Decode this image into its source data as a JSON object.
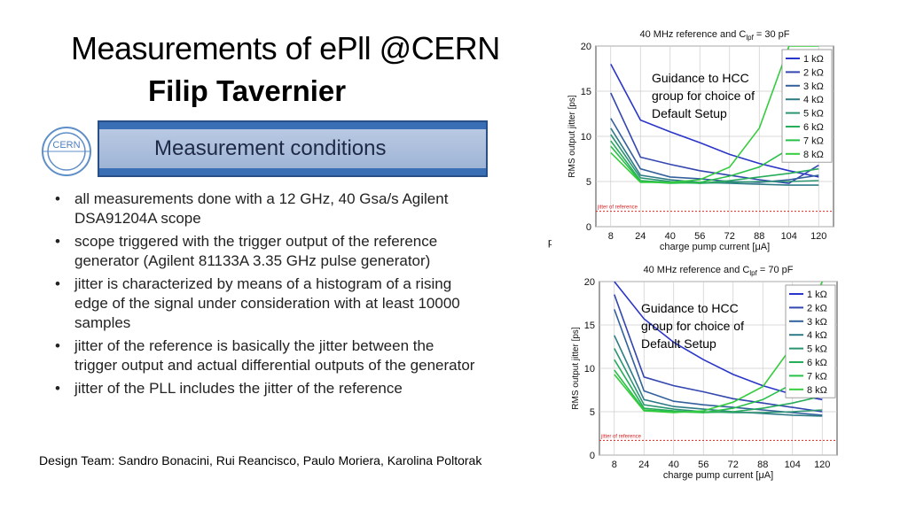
{
  "slide": {
    "title": "Measurements of ePll @CERN",
    "author": "Filip Tavernier",
    "logo_text": "CERN",
    "conditions_title": "Measurement conditions",
    "bullets": [
      "all measurements done with a 12 GHz, 40 Gsa/s Agilent DSA91204A scope",
      "scope triggered with the trigger output of the reference generator (Agilent 81133A 3.35 GHz pulse generator)",
      "jitter is characterized by means of a histogram of a rising edge of the signal under consideration with at least 10000 samples",
      "jitter of the reference is basically the jitter between the trigger output and actual differential outputs of the generator",
      "jitter of the PLL includes the jitter of the reference"
    ],
    "bullet_glyph": "•",
    "footer": "Design Team:  Sandro Bonacini, Rui Reancisco, Paulo Moriera, Karolina Poltorak",
    "side_fragment": "pF",
    "colors": {
      "banner": "#3a6fb5",
      "reference_line": "#d62728"
    }
  },
  "chart_data": [
    {
      "type": "line",
      "title": "40 MHz reference and C_lpf = 30 pF",
      "title_main": "40 MHz reference and C",
      "title_sub": "lpf",
      "title_tail": " = 30 pF",
      "xlabel": "charge pump current [μA]",
      "ylabel": "RMS output jitter [ps]",
      "categories": [
        8,
        24,
        40,
        56,
        72,
        88,
        104,
        120
      ],
      "yticks": [
        0,
        5,
        10,
        15,
        20
      ],
      "ylim": [
        0,
        20
      ],
      "grid": true,
      "legend_position": "top-right",
      "series": [
        {
          "name": "1 kΩ",
          "color": "#2b35c9",
          "values": [
            18,
            11.8,
            10.5,
            9.3,
            8,
            7,
            6.2,
            5.5
          ]
        },
        {
          "name": "2 kΩ",
          "color": "#3346b0",
          "values": [
            14.8,
            7.7,
            6.9,
            6.2,
            5.7,
            5.2,
            4.8,
            6.8
          ]
        },
        {
          "name": "3 kΩ",
          "color": "#33609c",
          "values": [
            12,
            6.4,
            5.5,
            5.3,
            5,
            4.9,
            5.2,
            5.7
          ]
        },
        {
          "name": "4 kΩ",
          "color": "#2e7b86",
          "values": [
            10.9,
            5.7,
            5.2,
            4.9,
            4.8,
            4.7,
            4.6,
            4.6
          ]
        },
        {
          "name": "5 kΩ",
          "color": "#2a9470",
          "values": [
            10.2,
            5.4,
            5.0,
            4.8,
            4.9,
            5.0,
            5.0,
            5.1
          ]
        },
        {
          "name": "6 kΩ",
          "color": "#27ac5a",
          "values": [
            9.5,
            5.1,
            4.9,
            4.8,
            5.1,
            5.5,
            5.9,
            6.4
          ]
        },
        {
          "name": "7 kΩ",
          "color": "#28c048",
          "values": [
            8.9,
            5.0,
            4.8,
            4.9,
            5.6,
            6.6,
            8.6,
            11.4
          ]
        },
        {
          "name": "8 kΩ",
          "color": "#35cc3d",
          "values": [
            8.2,
            4.9,
            4.9,
            5.2,
            6.6,
            10.9,
            20,
            20
          ]
        }
      ],
      "reference_label": "jitter of reference",
      "reference_value": 1.7,
      "annotation": [
        "Guidance to HCC",
        "group for choice of",
        "Default Setup"
      ]
    },
    {
      "type": "line",
      "title": "40 MHz reference and C_lpf = 70 pF",
      "title_main": "40 MHz reference and C",
      "title_sub": "lpf",
      "title_tail": " = 70 pF",
      "xlabel": "charge pump current [μA]",
      "ylabel": "RMS output jitter [ps]",
      "categories": [
        8,
        24,
        40,
        56,
        72,
        88,
        104,
        120
      ],
      "yticks": [
        0,
        5,
        10,
        15,
        20
      ],
      "ylim": [
        0,
        20
      ],
      "grid": true,
      "legend_position": "top-right",
      "series": [
        {
          "name": "1 kΩ",
          "color": "#2b35c9",
          "values": [
            25,
            15.7,
            13,
            11,
            9.3,
            8,
            7,
            6.4
          ]
        },
        {
          "name": "2 kΩ",
          "color": "#3346b0",
          "values": [
            18.5,
            9.0,
            8.0,
            7.3,
            6.5,
            6.0,
            5.5,
            5.0
          ]
        },
        {
          "name": "3 kΩ",
          "color": "#33609c",
          "values": [
            16.8,
            7.4,
            6.2,
            5.8,
            5.5,
            5.2,
            4.9,
            4.6
          ]
        },
        {
          "name": "4 kΩ",
          "color": "#2e7b86",
          "values": [
            13.8,
            6.4,
            5.6,
            5.3,
            5.0,
            4.8,
            4.6,
            4.5
          ]
        },
        {
          "name": "5 kΩ",
          "color": "#2a9470",
          "values": [
            12.3,
            5.8,
            5.3,
            5.0,
            4.9,
            4.9,
            5.0,
            5.2
          ]
        },
        {
          "name": "6 kΩ",
          "color": "#27ac5a",
          "values": [
            11,
            5.4,
            5.1,
            4.9,
            5.0,
            5.4,
            6.0,
            6.8
          ]
        },
        {
          "name": "7 kΩ",
          "color": "#28c048",
          "values": [
            9.8,
            5.2,
            5.0,
            4.9,
            5.4,
            6.4,
            8.2,
            11
          ]
        },
        {
          "name": "8 kΩ",
          "color": "#35cc3d",
          "values": [
            9.3,
            5.1,
            4.9,
            5.1,
            6.1,
            7.9,
            12.6,
            20
          ]
        }
      ],
      "reference_label": "jitter of reference",
      "reference_value": 1.7,
      "annotation": [
        "Guidance to HCC",
        "group for choice of",
        "Default Setup"
      ]
    }
  ]
}
